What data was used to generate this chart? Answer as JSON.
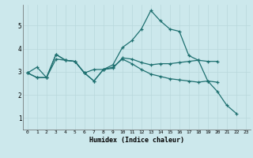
{
  "xlabel": "Humidex (Indice chaleur)",
  "bg_color": "#cce8ec",
  "grid_color": "#b8d8dc",
  "line_color": "#1e7070",
  "xlim_min": -0.5,
  "xlim_max": 23.5,
  "ylim_min": 0.5,
  "ylim_max": 5.9,
  "xticks": [
    0,
    1,
    2,
    3,
    4,
    5,
    6,
    7,
    8,
    9,
    10,
    11,
    12,
    13,
    14,
    15,
    16,
    17,
    18,
    19,
    20,
    21,
    22,
    23
  ],
  "yticks": [
    1,
    2,
    3,
    4,
    5
  ],
  "line1_x": [
    0,
    1,
    2,
    3,
    4,
    5,
    6,
    7,
    8,
    9,
    10,
    11,
    12,
    13,
    14,
    15,
    16,
    17,
    18,
    19,
    20,
    21,
    22
  ],
  "line1_y": [
    2.95,
    3.2,
    2.75,
    3.75,
    3.5,
    3.45,
    2.95,
    2.6,
    3.1,
    3.3,
    4.05,
    4.35,
    4.85,
    5.65,
    5.2,
    4.85,
    4.75,
    3.7,
    3.5,
    2.6,
    2.15,
    1.55,
    1.2
  ],
  "line2_x": [
    0,
    1,
    2,
    3,
    4,
    5,
    6,
    7,
    8,
    9,
    10,
    11,
    12,
    13,
    14,
    15,
    16,
    17,
    18,
    19,
    20
  ],
  "line2_y": [
    2.95,
    2.75,
    2.75,
    3.55,
    3.5,
    3.45,
    2.95,
    3.1,
    3.1,
    3.15,
    3.6,
    3.55,
    3.4,
    3.3,
    3.35,
    3.35,
    3.4,
    3.45,
    3.5,
    3.45,
    3.45
  ],
  "line3_x": [
    0,
    1,
    2,
    3,
    4,
    5,
    6,
    7,
    8,
    9,
    10,
    11,
    12,
    13,
    14,
    15,
    16,
    17,
    18,
    19,
    20
  ],
  "line3_y": [
    2.95,
    2.75,
    2.75,
    3.75,
    3.5,
    3.45,
    2.95,
    2.6,
    3.1,
    3.2,
    3.55,
    3.35,
    3.1,
    2.9,
    2.8,
    2.7,
    2.65,
    2.6,
    2.55,
    2.6,
    2.55
  ]
}
